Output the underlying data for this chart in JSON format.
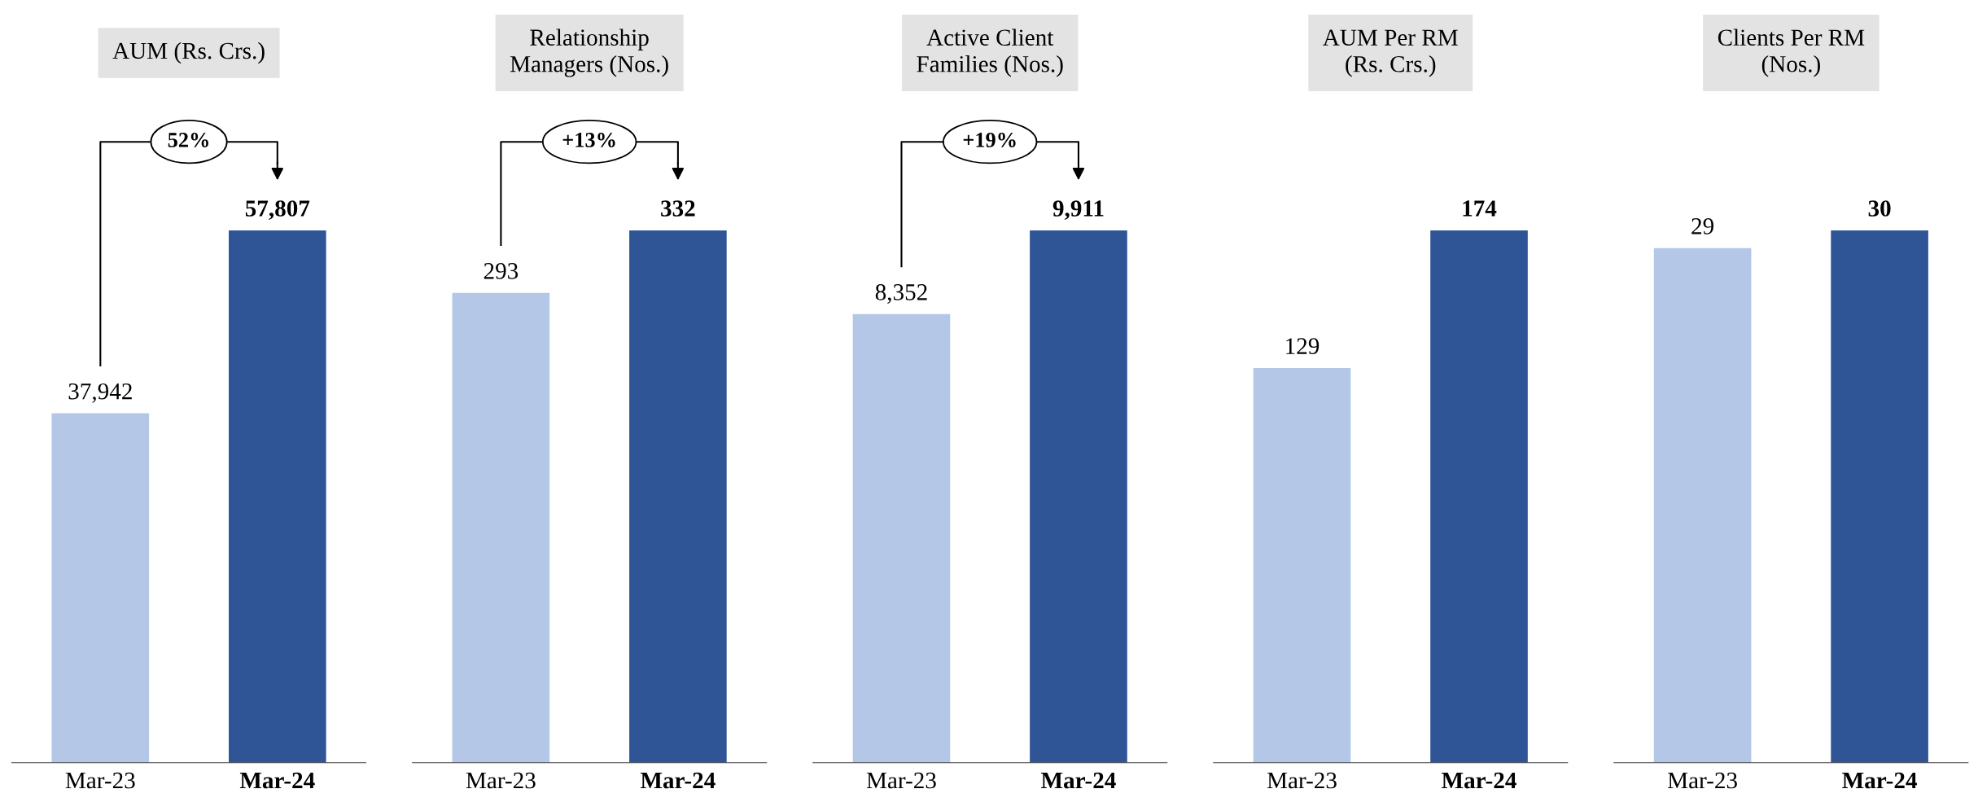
{
  "chart_data": [
    {
      "type": "bar",
      "title": "AUM (Rs. Crs.)",
      "categories": [
        "Mar-23",
        "Mar-24"
      ],
      "values": [
        37942,
        57807
      ],
      "colors": [
        "#b4c7e7",
        "#2f5597"
      ],
      "data_labels": true,
      "value_labels": [
        "37,942",
        "57,807"
      ],
      "annotations": [
        "52%"
      ],
      "tick_labels": "x"
    },
    {
      "type": "bar",
      "title": "Relationship\nManagers (Nos.)",
      "categories": [
        "Mar-23",
        "Mar-24"
      ],
      "values": [
        293,
        332
      ],
      "colors": [
        "#b4c7e7",
        "#2f5597"
      ],
      "data_labels": true,
      "value_labels": [
        "293",
        "332"
      ],
      "annotations": [
        "+13%"
      ],
      "tick_labels": "x"
    },
    {
      "type": "bar",
      "title": "Active Client\nFamilies (Nos.)",
      "categories": [
        "Mar-23",
        "Mar-24"
      ],
      "values": [
        8352,
        9911
      ],
      "colors": [
        "#b4c7e7",
        "#2f5597"
      ],
      "data_labels": true,
      "value_labels": [
        "8,352",
        "9,911"
      ],
      "annotations": [
        "+19%"
      ],
      "tick_labels": "x"
    },
    {
      "type": "bar",
      "title": "AUM Per RM\n(Rs. Crs.)",
      "categories": [
        "Mar-23",
        "Mar-24"
      ],
      "values": [
        129,
        174
      ],
      "colors": [
        "#b4c7e7",
        "#2f5597"
      ],
      "data_labels": true,
      "value_labels": [
        "129",
        "174"
      ],
      "tick_labels": "x"
    },
    {
      "type": "bar",
      "title": "Clients Per RM\n(Nos.)",
      "categories": [
        "Mar-23",
        "Mar-24"
      ],
      "values": [
        29,
        30
      ],
      "colors": [
        "#b4c7e7",
        "#2f5597"
      ],
      "data_labels": true,
      "value_labels": [
        "29",
        "30"
      ],
      "tick_labels": "x"
    }
  ]
}
